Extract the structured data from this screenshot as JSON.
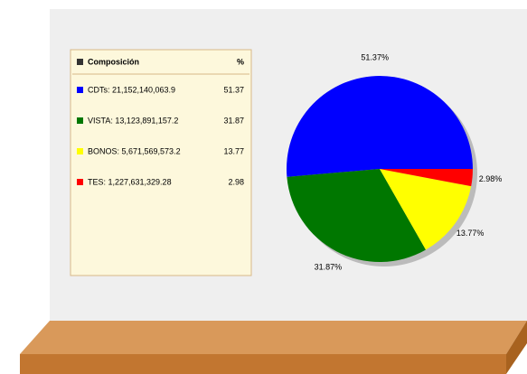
{
  "chart_data": {
    "type": "pie",
    "legend_title": "Composición",
    "legend_value_header": "%",
    "categories": [
      "CDTs: 21,152,140,063.9",
      "VISTA: 13,123,891,157.2",
      "BONOS: 5,671,569,573.2",
      "TES: 1,227,631,329.28"
    ],
    "values": [
      51.37,
      31.87,
      13.77,
      2.98
    ],
    "value_labels": [
      "51.37%",
      "31.87%",
      "13.77%",
      "2.98%"
    ],
    "colors": [
      "#0000ff",
      "#007700",
      "#ffff00",
      "#ff0000"
    ]
  }
}
